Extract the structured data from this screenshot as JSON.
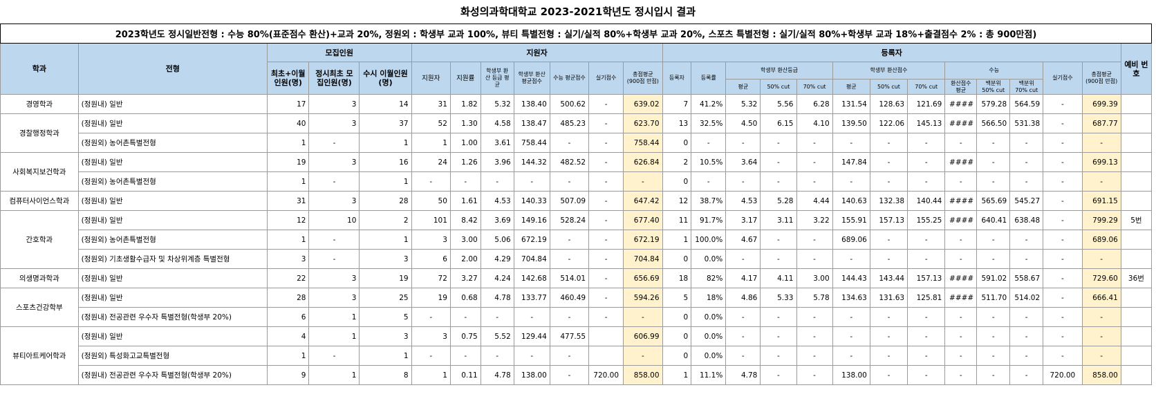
{
  "title": "화성의과학대학교 2023-2021학년도 정시입시 결과",
  "subtitle": "2023학년도 정시일반전형 : 수능 80%(표준점수 환산)+교과 20%, 정원외 : 학생부 교과 100%, 뷰티 특별전형 : 실기/실적 80%+학생부 교과 20%, 스포츠 특별전형 : 실기/실적 80%+학생부 교과 18%+출결점수 2% : 총 900만점)",
  "header": {
    "dept": "학과",
    "type": "전형",
    "recruit": "모집인원",
    "recruit_cols": [
      "최초+이월 인원(명)",
      "정시최초 모집인원(명)",
      "수시 이월인원(명)"
    ],
    "applicants": "지원자",
    "applicant_cols": [
      "지원자",
      "지원률",
      "학생부 환산 등급 평균",
      "학생부 환산 평균점수",
      "수능 평균점수",
      "실기점수",
      "총점평균 (900점 만점)"
    ],
    "registered": "등록자",
    "reg_cols": [
      "등록자",
      "등록률"
    ],
    "reg_grade": "학생부 환산등급",
    "reg_score": "학생부 환산점수",
    "reg_suneung": "수능",
    "reg_sub": [
      "평균",
      "50% cut",
      "70% cut",
      "평균",
      "50% cut",
      "70% cut",
      "환산점수 평균",
      "백분위 50% cut",
      "백분위 70% cut"
    ],
    "reg_practical": "실기점수",
    "reg_total": "총점평균 (900점 만점)",
    "waitlist": "예비 번호"
  },
  "rows": [
    {
      "dept": "경영학과",
      "type": "(정원내) 일반",
      "c": [
        "17",
        "3",
        "14",
        "31",
        "1.82",
        "5.32",
        "138.40",
        "500.62",
        "-",
        "639.02",
        "7",
        "41.2%",
        "5.32",
        "5.56",
        "6.28",
        "131.54",
        "128.63",
        "121.69",
        "####",
        "579.28",
        "564.59",
        "-",
        "699.39",
        ""
      ]
    },
    {
      "dept": "경찰행정학과",
      "type": "(정원내) 일반",
      "c": [
        "40",
        "3",
        "37",
        "52",
        "1.30",
        "4.58",
        "138.47",
        "485.23",
        "-",
        "623.70",
        "13",
        "32.5%",
        "4.50",
        "6.15",
        "4.10",
        "139.50",
        "122.06",
        "145.13",
        "####",
        "566.50",
        "531.38",
        "-",
        "687.77",
        ""
      ]
    },
    {
      "dept": "",
      "type": "(정원외) 농어촌특별전형",
      "c": [
        "1",
        "-",
        "1",
        "1",
        "1.00",
        "3.61",
        "758.44",
        "-",
        "-",
        "758.44",
        "0",
        "-",
        "-",
        "-",
        "-",
        "-",
        "-",
        "-",
        "-",
        "-",
        "-",
        "-",
        "-",
        ""
      ]
    },
    {
      "dept": "사회복지보건학과",
      "type": "(정원내) 일반",
      "c": [
        "19",
        "3",
        "16",
        "24",
        "1.26",
        "3.96",
        "144.32",
        "482.52",
        "-",
        "626.84",
        "2",
        "10.5%",
        "3.64",
        "-",
        "-",
        "147.84",
        "-",
        "-",
        "####",
        "-",
        "-",
        "-",
        "699.13",
        ""
      ]
    },
    {
      "dept": "",
      "type": "(정원외) 농어촌특별전형",
      "c": [
        "1",
        "-",
        "1",
        "-",
        "-",
        "-",
        "-",
        "-",
        "-",
        "-",
        "0",
        "-",
        "-",
        "-",
        "-",
        "-",
        "-",
        "-",
        "-",
        "-",
        "-",
        "-",
        "-",
        ""
      ]
    },
    {
      "dept": "컴퓨터사이언스학과",
      "type": "(정원내) 일반",
      "c": [
        "31",
        "3",
        "28",
        "50",
        "1.61",
        "4.53",
        "140.33",
        "507.09",
        "-",
        "647.42",
        "12",
        "38.7%",
        "4.53",
        "5.28",
        "4.44",
        "140.63",
        "132.38",
        "140.44",
        "####",
        "565.69",
        "545.27",
        "-",
        "691.15",
        ""
      ]
    },
    {
      "dept": "간호학과",
      "type": "(정원내) 일반",
      "c": [
        "12",
        "10",
        "2",
        "101",
        "8.42",
        "3.69",
        "149.16",
        "528.24",
        "-",
        "677.40",
        "11",
        "91.7%",
        "3.17",
        "3.11",
        "3.22",
        "155.91",
        "157.13",
        "155.25",
        "####",
        "640.41",
        "638.48",
        "-",
        "799.29",
        "5번"
      ]
    },
    {
      "dept": "",
      "type": "(정원외) 농어촌특별전형",
      "c": [
        "1",
        "-",
        "1",
        "3",
        "3.00",
        "5.06",
        "672.19",
        "-",
        "-",
        "672.19",
        "1",
        "100.0%",
        "4.67",
        "-",
        "-",
        "689.06",
        "-",
        "-",
        "-",
        "-",
        "-",
        "-",
        "689.06",
        ""
      ]
    },
    {
      "dept": "",
      "type": "(정원외) 기초생활수급자 및 차상위계층 특별전형",
      "c": [
        "3",
        "-",
        "3",
        "6",
        "2.00",
        "4.29",
        "704.84",
        "-",
        "-",
        "704.84",
        "0",
        "0.0%",
        "-",
        "-",
        "-",
        "-",
        "-",
        "-",
        "-",
        "-",
        "-",
        "-",
        "-",
        ""
      ]
    },
    {
      "dept": "의생명과학과",
      "type": "(정원내) 일반",
      "c": [
        "22",
        "3",
        "19",
        "72",
        "3.27",
        "4.24",
        "142.68",
        "514.01",
        "-",
        "656.69",
        "18",
        "82%",
        "4.17",
        "4.11",
        "3.00",
        "144.43",
        "143.44",
        "157.13",
        "####",
        "591.02",
        "558.67",
        "-",
        "729.60",
        "36번"
      ]
    },
    {
      "dept": "스포츠건강학부",
      "type": "(정원내) 일반",
      "c": [
        "28",
        "3",
        "25",
        "19",
        "0.68",
        "4.78",
        "133.77",
        "460.49",
        "-",
        "594.26",
        "5",
        "18%",
        "4.86",
        "5.33",
        "5.78",
        "134.63",
        "131.63",
        "125.81",
        "####",
        "511.70",
        "514.02",
        "-",
        "666.41",
        ""
      ]
    },
    {
      "dept": "",
      "type": "(정원내) 전공관련 우수자 특별전형(학생부 20%)",
      "c": [
        "6",
        "1",
        "5",
        "-",
        "-",
        "-",
        "-",
        "-",
        "-",
        "-",
        "0",
        "0.0%",
        "-",
        "-",
        "-",
        "-",
        "-",
        "-",
        "-",
        "-",
        "-",
        "-",
        "-",
        ""
      ]
    },
    {
      "dept": "뷰티아트케어학과",
      "type": "(정원내) 일반",
      "c": [
        "4",
        "1",
        "3",
        "3",
        "0.75",
        "5.52",
        "129.44",
        "477.55",
        "",
        "606.99",
        "0",
        "0.0%",
        "-",
        "-",
        "-",
        "-",
        "-",
        "-",
        "-",
        "-",
        "-",
        "-",
        "-",
        ""
      ]
    },
    {
      "dept": "",
      "type": "(정원외) 특성화고교특별전형",
      "c": [
        "1",
        "-",
        "1",
        "-",
        "-",
        "-",
        "-",
        "-",
        "",
        "-",
        "0",
        "0.0%",
        "-",
        "-",
        "-",
        "-",
        "-",
        "-",
        "-",
        "-",
        "-",
        "-",
        "-",
        ""
      ]
    },
    {
      "dept": "",
      "type": "(정원내) 전공관련 우수자 특별전형(학생부 20%)",
      "c": [
        "9",
        "1",
        "8",
        "1",
        "0.11",
        "4.78",
        "138.00",
        "-",
        "720.00",
        "858.00",
        "1",
        "11.1%",
        "4.78",
        "-",
        "-",
        "138.00",
        "-",
        "-",
        "-",
        "-",
        "-",
        "720.00",
        "858.00",
        ""
      ]
    }
  ]
}
